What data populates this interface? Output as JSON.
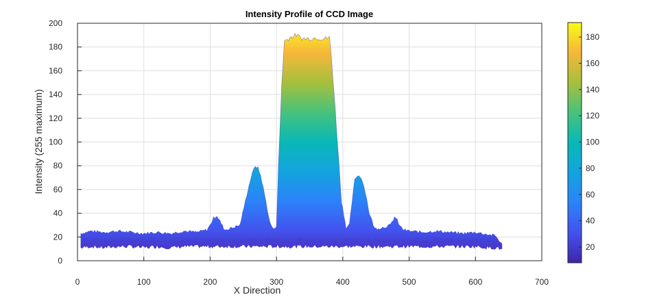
{
  "chart_data": {
    "type": "area",
    "title": "Intensity Profile of CCD Image",
    "xlabel": "X Direction",
    "ylabel": "Intensity (255 maximum)",
    "xlim": [
      0,
      700
    ],
    "ylim": [
      0,
      200
    ],
    "xticks": [
      0,
      100,
      200,
      300,
      400,
      500,
      600,
      700
    ],
    "yticks": [
      0,
      20,
      40,
      60,
      80,
      100,
      120,
      140,
      160,
      180,
      200
    ],
    "grid": true,
    "colormap": "parula",
    "colorbar": {
      "range": [
        8,
        191
      ],
      "ticks": [
        20,
        40,
        60,
        80,
        100,
        120,
        140,
        160,
        180
      ],
      "position": "right"
    },
    "series": [
      {
        "x": [
          5,
          20,
          40,
          60,
          80,
          100,
          120,
          140,
          160,
          180,
          195,
          200,
          205,
          210,
          215,
          222,
          235,
          245,
          255,
          262,
          268,
          272,
          276,
          282,
          290,
          296,
          300,
          303,
          308,
          312,
          320,
          330,
          340,
          350,
          360,
          370,
          380,
          383,
          387,
          392,
          398,
          405,
          410,
          414,
          418,
          422,
          428,
          434,
          440,
          448,
          460,
          472,
          478,
          482,
          486,
          492,
          500,
          520,
          540,
          560,
          580,
          600,
          620,
          630,
          640
        ],
        "y": [
          23,
          25,
          24,
          25,
          24,
          23,
          24,
          23,
          25,
          24,
          26,
          30,
          36,
          38,
          33,
          26,
          28,
          30,
          55,
          71,
          80,
          78,
          72,
          56,
          32,
          26,
          30,
          80,
          150,
          185,
          188,
          190,
          187,
          187,
          188,
          187,
          188,
          170,
          140,
          100,
          50,
          28,
          30,
          50,
          68,
          72,
          70,
          58,
          40,
          27,
          28,
          30,
          37,
          34,
          29,
          26,
          25,
          24,
          25,
          24,
          23,
          24,
          22,
          21,
          14
        ],
        "y_min": [
          11,
          12,
          11,
          12,
          12,
          11,
          12,
          11,
          12,
          12,
          12,
          12,
          12,
          12,
          12,
          12,
          12,
          12,
          12,
          12,
          12,
          12,
          12,
          12,
          12,
          12,
          12,
          12,
          12,
          12,
          12,
          12,
          12,
          12,
          12,
          12,
          12,
          12,
          12,
          12,
          12,
          12,
          12,
          12,
          12,
          12,
          12,
          12,
          12,
          12,
          12,
          12,
          12,
          12,
          12,
          12,
          12,
          12,
          12,
          12,
          12,
          12,
          11,
          11,
          10
        ]
      }
    ]
  }
}
